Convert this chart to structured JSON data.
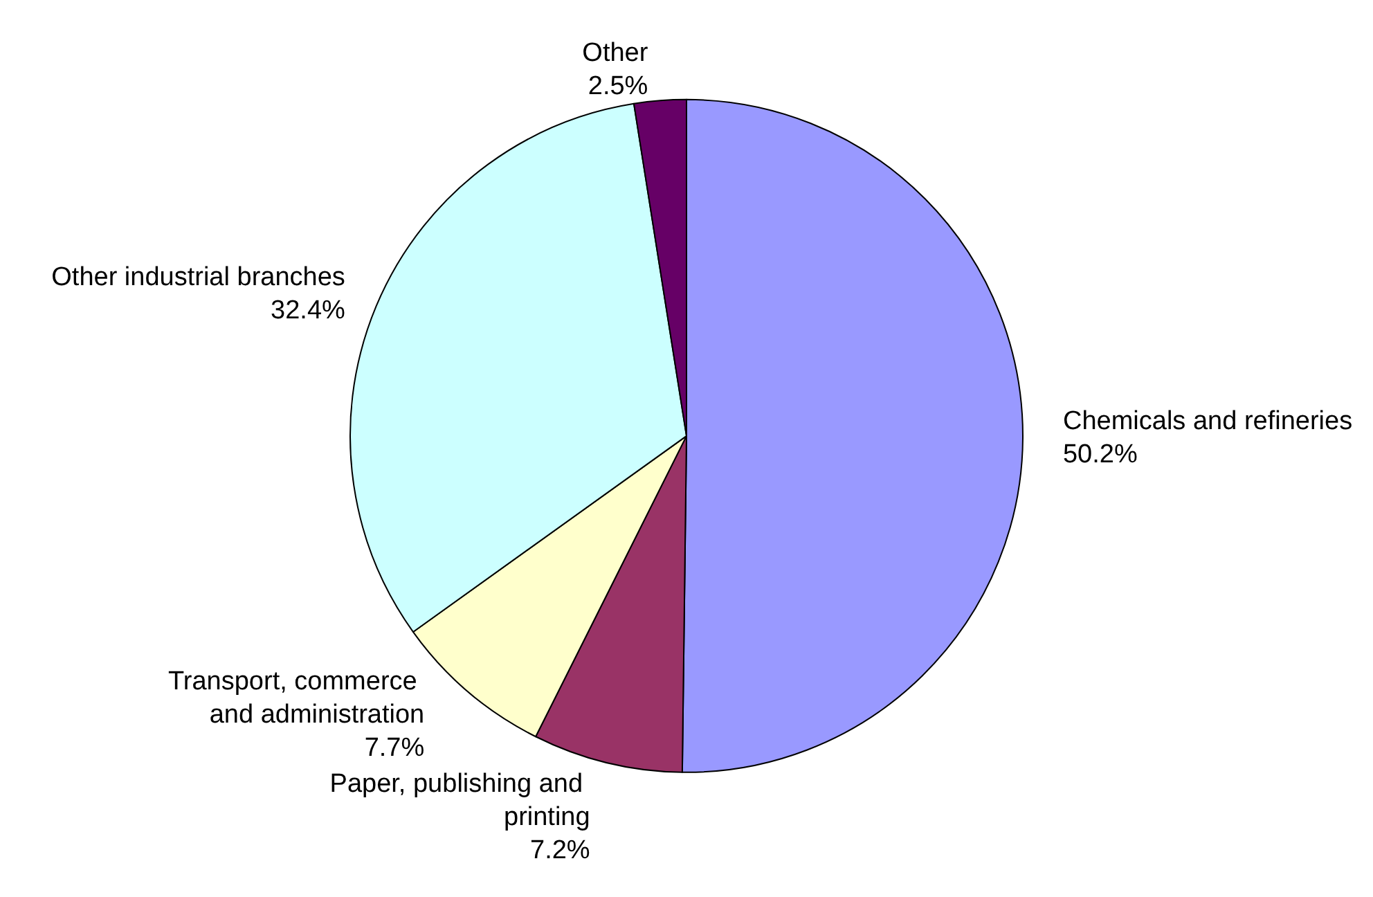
{
  "chart_data": {
    "type": "pie",
    "categories": [
      "Chemicals and refineries",
      "Paper, publishing and printing",
      "Transport, commerce and administration",
      "Other industrial branches",
      "Other"
    ],
    "values": [
      50.2,
      7.2,
      7.7,
      32.4,
      2.5
    ],
    "value_labels": [
      "50.2%",
      "7.2%",
      "7.7%",
      "32.4%",
      "2.5%"
    ],
    "colors": [
      "#9999ff",
      "#993366",
      "#ffffcc",
      "#ccffff",
      "#660066"
    ],
    "legend": false
  }
}
